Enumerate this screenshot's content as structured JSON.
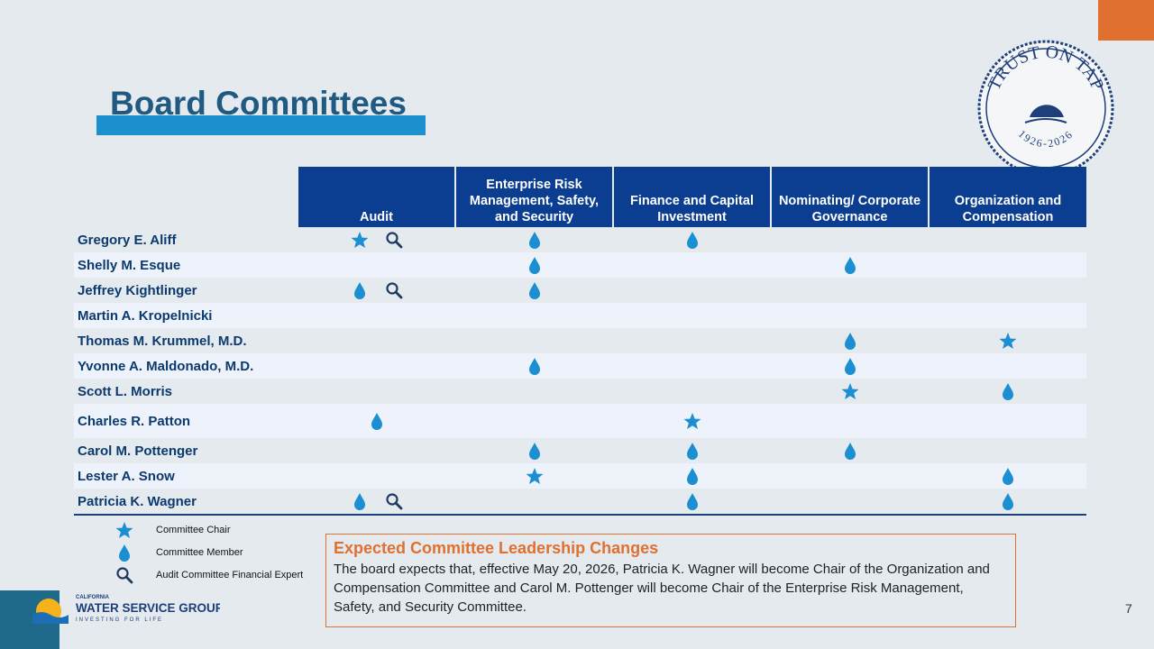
{
  "title": "Board Committees",
  "table": {
    "columns": [
      "Audit",
      "Enterprise Risk Management, Safety, and Security",
      "Finance and Capital Investment",
      "Nominating/ Corporate Governance",
      "Organization and Compensation"
    ],
    "rows": [
      {
        "name": "Gregory E. Aliff",
        "cells": [
          [
            0,
            2
          ],
          [
            1
          ],
          [
            1
          ],
          [],
          []
        ]
      },
      {
        "name": "Shelly M. Esque",
        "cells": [
          [],
          [
            1
          ],
          [],
          [
            1
          ],
          []
        ]
      },
      {
        "name": "Jeffrey Kightlinger",
        "cells": [
          [
            1,
            2
          ],
          [
            1
          ],
          [],
          [],
          []
        ]
      },
      {
        "name": "Martin A. Kropelnicki",
        "cells": [
          [],
          [],
          [],
          [],
          []
        ]
      },
      {
        "name": "Thomas M. Krummel, M.D.",
        "cells": [
          [],
          [],
          [],
          [
            1
          ],
          [
            0
          ]
        ]
      },
      {
        "name": "Yvonne A. Maldonado, M.D.",
        "cells": [
          [],
          [
            1
          ],
          [],
          [
            1
          ],
          []
        ]
      },
      {
        "name": "Scott L. Morris",
        "cells": [
          [],
          [],
          [],
          [
            0
          ],
          [
            1
          ]
        ]
      },
      {
        "name": "Charles R. Patton",
        "cells": [
          [
            1
          ],
          [],
          [
            0
          ],
          [],
          []
        ]
      },
      {
        "name": "Carol M. Pottenger",
        "cells": [
          [],
          [
            1
          ],
          [
            1
          ],
          [
            1
          ],
          []
        ]
      },
      {
        "name": "Lester A. Snow",
        "cells": [
          [],
          [
            0
          ],
          [
            1
          ],
          [],
          [
            1
          ]
        ]
      },
      {
        "name": "Patricia K. Wagner",
        "cells": [
          [
            1,
            2
          ],
          [],
          [
            1
          ],
          [],
          [
            1
          ]
        ]
      }
    ]
  },
  "legend": [
    "Committee Chair",
    "Committee Member",
    "Audit Committee Financial Expert"
  ],
  "callout": {
    "title": "Expected Committee Leadership Changes",
    "text": "The board expects that, effective May 20, 2026, Patricia K. Wagner will become Chair of the Organization and Compensation Committee and Carol M. Pottenger will become Chair of the Enterprise Risk Management, Safety, and Security Committee."
  },
  "logo": {
    "top": "CALIFORNIA",
    "name": "WATER SERVICE GROUP",
    "slogan": "INVESTING FOR LIFE"
  },
  "seal": {
    "motto": "TRUST ON TAP",
    "years": "1926-2026"
  },
  "page_number": "7"
}
